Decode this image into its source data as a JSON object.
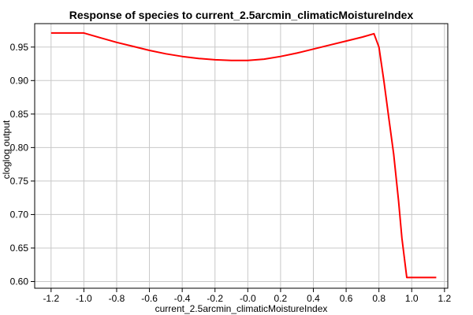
{
  "chart_data": {
    "type": "line",
    "title": "Response of species to current_2.5arcmin_climaticMoistureIndex",
    "xlabel": "current_2.5arcmin_climaticMoistureIndex",
    "ylabel": "cloglog output",
    "xlim": [
      -1.3,
      1.22
    ],
    "ylim": [
      0.59,
      0.985
    ],
    "xticks": [
      -1.2,
      -1.0,
      -0.8,
      -0.6,
      -0.4,
      -0.2,
      0.0,
      0.2,
      0.4,
      0.6,
      0.8,
      1.0,
      1.2
    ],
    "xtick_labels": [
      "-1.2",
      "-1.0",
      "-0.8",
      "-0.6",
      "-0.4",
      "-0.2",
      "-0.0",
      "0.2",
      "0.4",
      "0.6",
      "0.8",
      "1.0",
      "1.2"
    ],
    "yticks": [
      0.6,
      0.65,
      0.7,
      0.75,
      0.8,
      0.85,
      0.9,
      0.95
    ],
    "ytick_labels": [
      "0.60",
      "0.65",
      "0.70",
      "0.75",
      "0.80",
      "0.85",
      "0.90",
      "0.95"
    ],
    "grid": true,
    "series": [
      {
        "color": "#ff0000",
        "x": [
          -1.2,
          -1.0,
          -0.9,
          -0.8,
          -0.7,
          -0.6,
          -0.5,
          -0.4,
          -0.3,
          -0.2,
          -0.1,
          0.0,
          0.1,
          0.2,
          0.3,
          0.4,
          0.5,
          0.6,
          0.7,
          0.77,
          0.8,
          0.83,
          0.86,
          0.89,
          0.92,
          0.94,
          0.97,
          1.0,
          1.15
        ],
        "y": [
          0.971,
          0.971,
          0.964,
          0.957,
          0.951,
          0.945,
          0.94,
          0.936,
          0.933,
          0.931,
          0.93,
          0.93,
          0.932,
          0.936,
          0.941,
          0.947,
          0.953,
          0.959,
          0.965,
          0.97,
          0.95,
          0.9,
          0.845,
          0.79,
          0.72,
          0.665,
          0.606,
          0.606,
          0.606
        ]
      }
    ]
  }
}
